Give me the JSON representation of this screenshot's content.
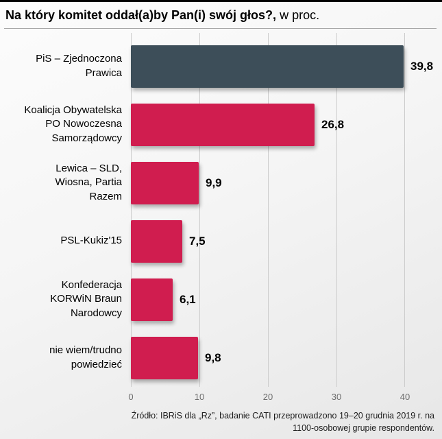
{
  "header": {
    "title_bold": "Na który komitet oddał(a)by Pan(i) swój głos?,",
    "title_rest": " w proc."
  },
  "chart_data": {
    "type": "bar",
    "orientation": "horizontal",
    "title": "Na który komitet oddał(a)by Pan(i) swój głos?",
    "unit": "proc.",
    "categories": [
      "PiS – Zjednoczona Prawica",
      "Koalicja Obywatelska PO Nowoczesna Samorządowcy",
      "Lewica – SLD, Wiosna, Partia Razem",
      "PSL-Kukiz'15",
      "Konfederacja KORWiN Braun Narodowcy",
      "nie wiem/trudno powiedzieć"
    ],
    "values": [
      39.8,
      26.8,
      9.9,
      7.5,
      6.1,
      9.8
    ],
    "xlim": [
      0,
      40
    ],
    "xticks": [
      0,
      10,
      20,
      30,
      40
    ],
    "grid": true,
    "legend": "none",
    "accent_color": "#d01d4f",
    "highlight_color": "#3d4e59",
    "rows": [
      {
        "label": "PiS – Zjednoczona\nPrawica",
        "value": 39.8,
        "value_label": "39,8",
        "color": "#3d4e59"
      },
      {
        "label": "Koalicja Obywatelska\nPO Nowoczesna\nSamorządowcy",
        "value": 26.8,
        "value_label": "26,8",
        "color": "#d01d4f"
      },
      {
        "label": "Lewica – SLD,\nWiosna, Partia\nRazem",
        "value": 9.9,
        "value_label": "9,9",
        "color": "#d01d4f"
      },
      {
        "label": "PSL-Kukiz'15",
        "value": 7.5,
        "value_label": "7,5",
        "color": "#d01d4f"
      },
      {
        "label": "Konfederacja\nKORWiN Braun\nNarodowcy",
        "value": 6.1,
        "value_label": "6,1",
        "color": "#d01d4f"
      },
      {
        "label": "nie wiem/trudno\npowiedzieć",
        "value": 9.8,
        "value_label": "9,8",
        "color": "#d01d4f"
      }
    ]
  },
  "footer": {
    "source": "Źródło: IBRiS dla „Rz”, badanie CATI przeprowadzono 19–20 grudnia 2019 r. na\n1100-osobowej grupie respondentów."
  }
}
